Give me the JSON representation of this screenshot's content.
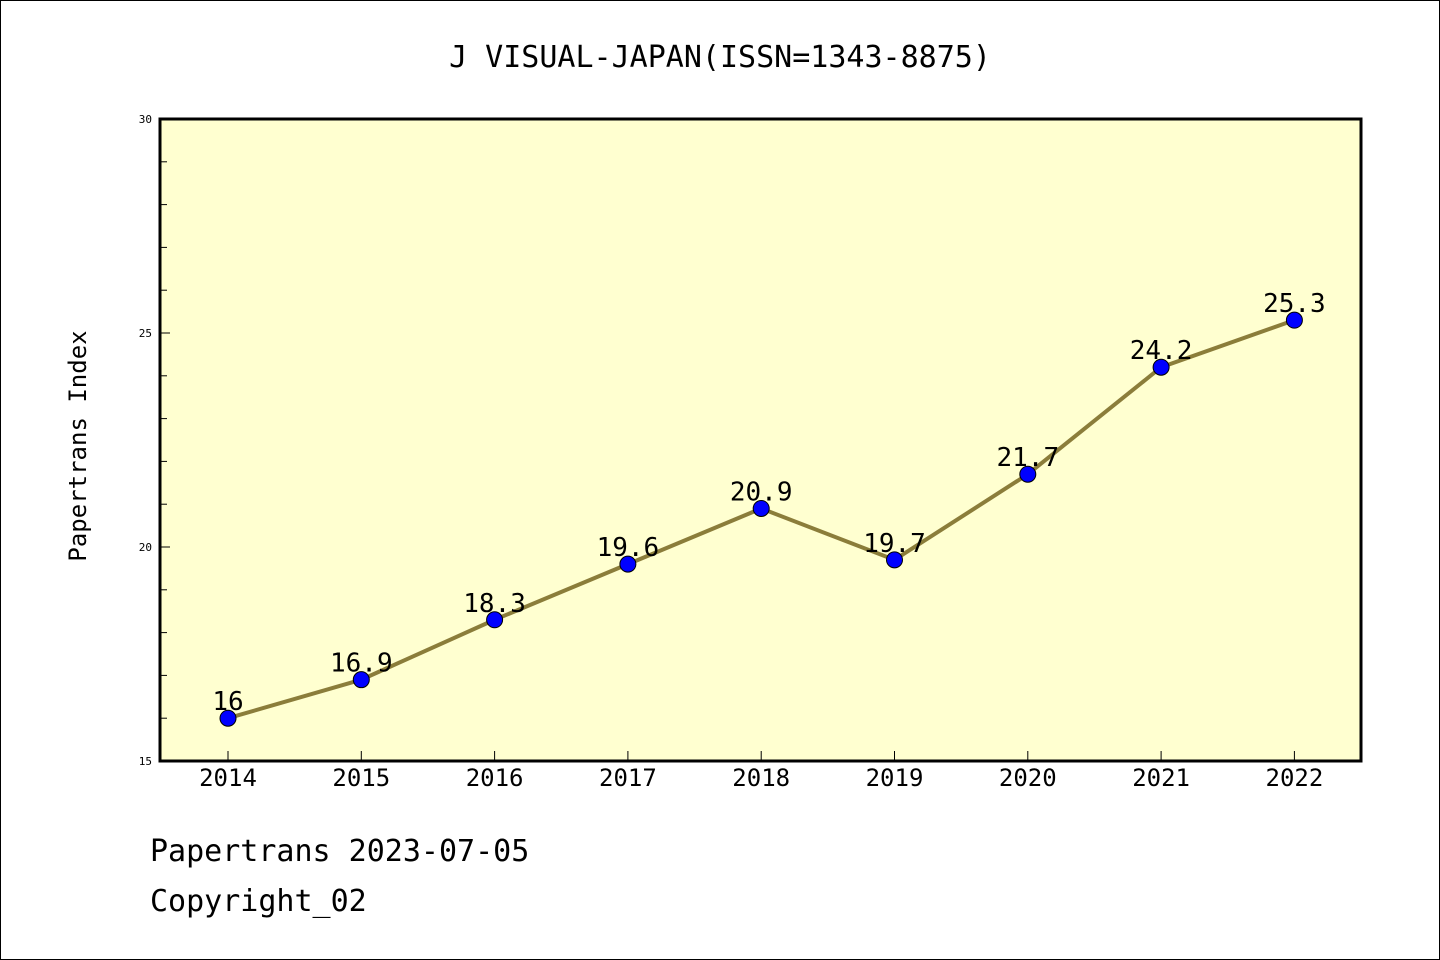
{
  "chart_data": {
    "type": "line",
    "title": "J VISUAL-JAPAN(ISSN=1343-8875)",
    "xlabel": "",
    "ylabel": "Papertrans Index",
    "categories": [
      "2014",
      "2015",
      "2016",
      "2017",
      "2018",
      "2019",
      "2020",
      "2021",
      "2022"
    ],
    "values": [
      16,
      16.9,
      18.3,
      19.6,
      20.9,
      19.7,
      21.7,
      24.2,
      25.3
    ],
    "data_labels": [
      "16",
      "16.9",
      "18.3",
      "19.6",
      "20.9",
      "19.7",
      "21.7",
      "24.2",
      "25.3"
    ],
    "ylim": [
      15,
      30
    ],
    "yticks": [
      "15",
      "20",
      "25",
      "30"
    ],
    "grid": false,
    "legend": "none",
    "colors": {
      "plot_background": "#ffffd0",
      "line": "#8b7d3a",
      "marker": "#0000ff"
    }
  },
  "footer": {
    "date_line": "Papertrans 2023-07-05",
    "copyright_line": "Copyright_02"
  }
}
